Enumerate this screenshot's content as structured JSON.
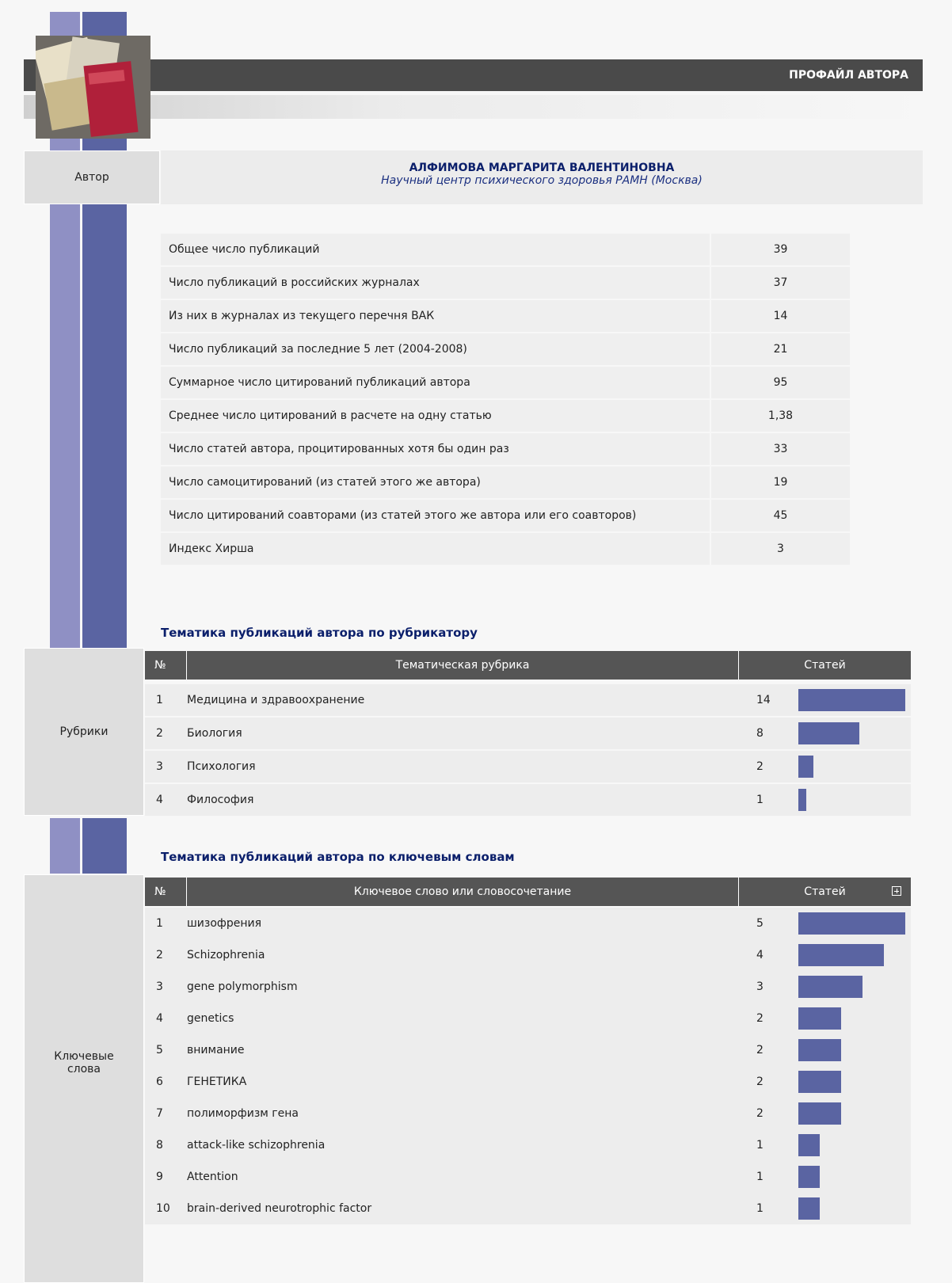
{
  "header": {
    "title": "ПРОФАЙЛ АВТОРА"
  },
  "author": {
    "label": "Автор",
    "name": "АЛФИМОВА МАРГАРИТА ВАЛЕНТИНОВНА",
    "affiliation": "Научный центр психического здоровья РАМН (Москва)"
  },
  "stats": {
    "rows": [
      [
        "Общее число публикаций",
        "39"
      ],
      [
        "Число публикаций в российских журналах",
        "37"
      ],
      [
        "Из них в журналах из текущего перечня ВАК",
        "14"
      ],
      [
        "Число публикаций за последние 5 лет (2004-2008)",
        "21"
      ],
      [
        "Суммарное число цитирований публикаций автора",
        "95"
      ],
      [
        "Среднее число цитирований в расчете на одну статью",
        "1,38"
      ],
      [
        "Число статей автора, процитированных хотя бы один раз",
        "33"
      ],
      [
        "Число самоцитирований (из статей этого же автора)",
        "19"
      ],
      [
        "Число цитирований соавторами (из статей этого же автора или его соавторов)",
        "45"
      ],
      [
        "Индекс Хирша",
        "3"
      ]
    ]
  },
  "rubrics": {
    "label": "Рубрики",
    "heading": "Тематика публикаций автора по рубрикатору",
    "columns": [
      "№",
      "Тематическая рубрика",
      "Статей"
    ],
    "rows": [
      {
        "n": 1,
        "name": "Медицина и здравоохранение",
        "count": 14
      },
      {
        "n": 2,
        "name": "Биология",
        "count": 8
      },
      {
        "n": 3,
        "name": "Психология",
        "count": 2
      },
      {
        "n": 4,
        "name": "Философия",
        "count": 1
      }
    ]
  },
  "keywords": {
    "label": "Ключевые слова",
    "heading": "Тематика публикаций автора по ключевым словам",
    "columns": [
      "№",
      "Ключевое слово или словосочетание",
      "Статей"
    ],
    "rows": [
      {
        "n": 1,
        "name": "шизофрения",
        "count": 5
      },
      {
        "n": 2,
        "name": "Schizophrenia",
        "count": 4
      },
      {
        "n": 3,
        "name": "gene polymorphism",
        "count": 3
      },
      {
        "n": 4,
        "name": "genetics",
        "count": 2
      },
      {
        "n": 5,
        "name": "внимание",
        "count": 2
      },
      {
        "n": 6,
        "name": "ГЕНЕТИКА",
        "count": 2
      },
      {
        "n": 7,
        "name": "полиморфизм гена",
        "count": 2
      },
      {
        "n": 8,
        "name": "attack-like schizophrenia",
        "count": 1
      },
      {
        "n": 9,
        "name": "Attention",
        "count": 1
      },
      {
        "n": 10,
        "name": "brain-derived neurotrophic factor",
        "count": 1
      }
    ]
  }
}
